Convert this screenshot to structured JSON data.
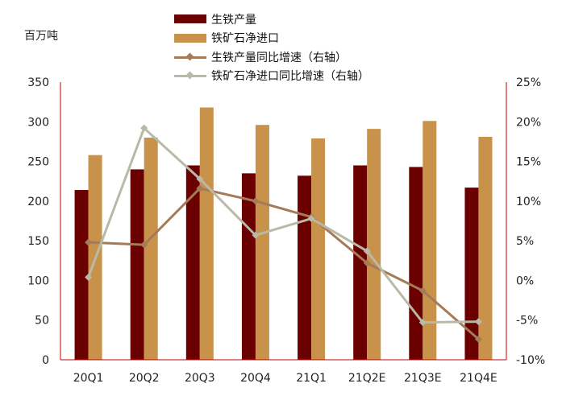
{
  "unit_label": "百万吨",
  "colors": {
    "pig_iron_bar": "#6b0000",
    "ore_import_bar": "#c8924a",
    "pig_iron_yoy_line": "#a57a58",
    "ore_import_yoy_line": "#b9b9a8",
    "axis_red": "#c00000",
    "tick_text": "#222222"
  },
  "chart_data": {
    "type": "bar",
    "categories": [
      "20Q1",
      "20Q2",
      "20Q3",
      "20Q4",
      "21Q1",
      "21Q2E",
      "21Q3E",
      "21Q4E"
    ],
    "ylim": [
      0,
      350
    ],
    "yticks": [
      "0",
      "50",
      "100",
      "150",
      "200",
      "250",
      "300",
      "350"
    ],
    "y2lim": [
      -10,
      25
    ],
    "y2ticks": [
      "-10%",
      "-5%",
      "0%",
      "5%",
      "10%",
      "15%",
      "20%",
      "25%"
    ],
    "series": [
      {
        "name": "生铁产量",
        "kind": "bar",
        "axis": "left",
        "values": [
          214,
          240,
          245,
          235,
          232,
          245,
          243,
          217
        ]
      },
      {
        "name": "铁矿石净进口",
        "kind": "bar",
        "axis": "left",
        "values": [
          258,
          280,
          318,
          296,
          279,
          291,
          301,
          281
        ]
      },
      {
        "name": "生铁产量同比增速（右轴）",
        "kind": "line",
        "axis": "right",
        "values": [
          4.8,
          4.5,
          11.6,
          10.0,
          8.0,
          2.2,
          -1.3,
          -7.4
        ]
      },
      {
        "name": "铁矿石净进口同比增速（右轴）",
        "kind": "line",
        "axis": "right",
        "values": [
          0.4,
          19.2,
          12.8,
          5.7,
          7.8,
          3.7,
          -5.3,
          -5.2
        ]
      }
    ]
  }
}
